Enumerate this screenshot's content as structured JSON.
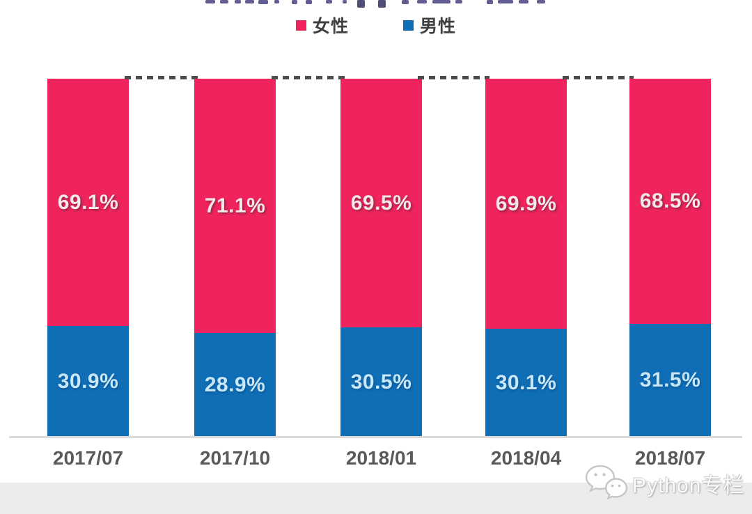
{
  "chart_data": {
    "type": "bar",
    "stacked": true,
    "percent_stacked": true,
    "title": "",
    "categories": [
      "2017/07",
      "2017/10",
      "2018/01",
      "2018/04",
      "2018/07"
    ],
    "series": [
      {
        "name": "女性",
        "color": "#f0245c",
        "values": [
          69.1,
          71.1,
          69.5,
          69.9,
          68.5
        ]
      },
      {
        "name": "男性",
        "color": "#0f6eb6",
        "values": [
          30.9,
          28.9,
          30.5,
          30.1,
          31.5
        ]
      }
    ],
    "value_suffix": "%",
    "ylim": [
      0,
      100
    ],
    "grid": false,
    "legend_position": "top",
    "top_reference_line": "dashed"
  },
  "legend": {
    "female_label": "女性",
    "male_label": "男性"
  },
  "watermark": {
    "text": "Python专栏",
    "icon": "wechat-icon"
  },
  "colors": {
    "female": "#f0245c",
    "male": "#0f6eb6",
    "axis_label": "#595959",
    "baseline": "#dadada",
    "dash_line": "#4d4d4d",
    "bottom_band": "#ececec"
  }
}
